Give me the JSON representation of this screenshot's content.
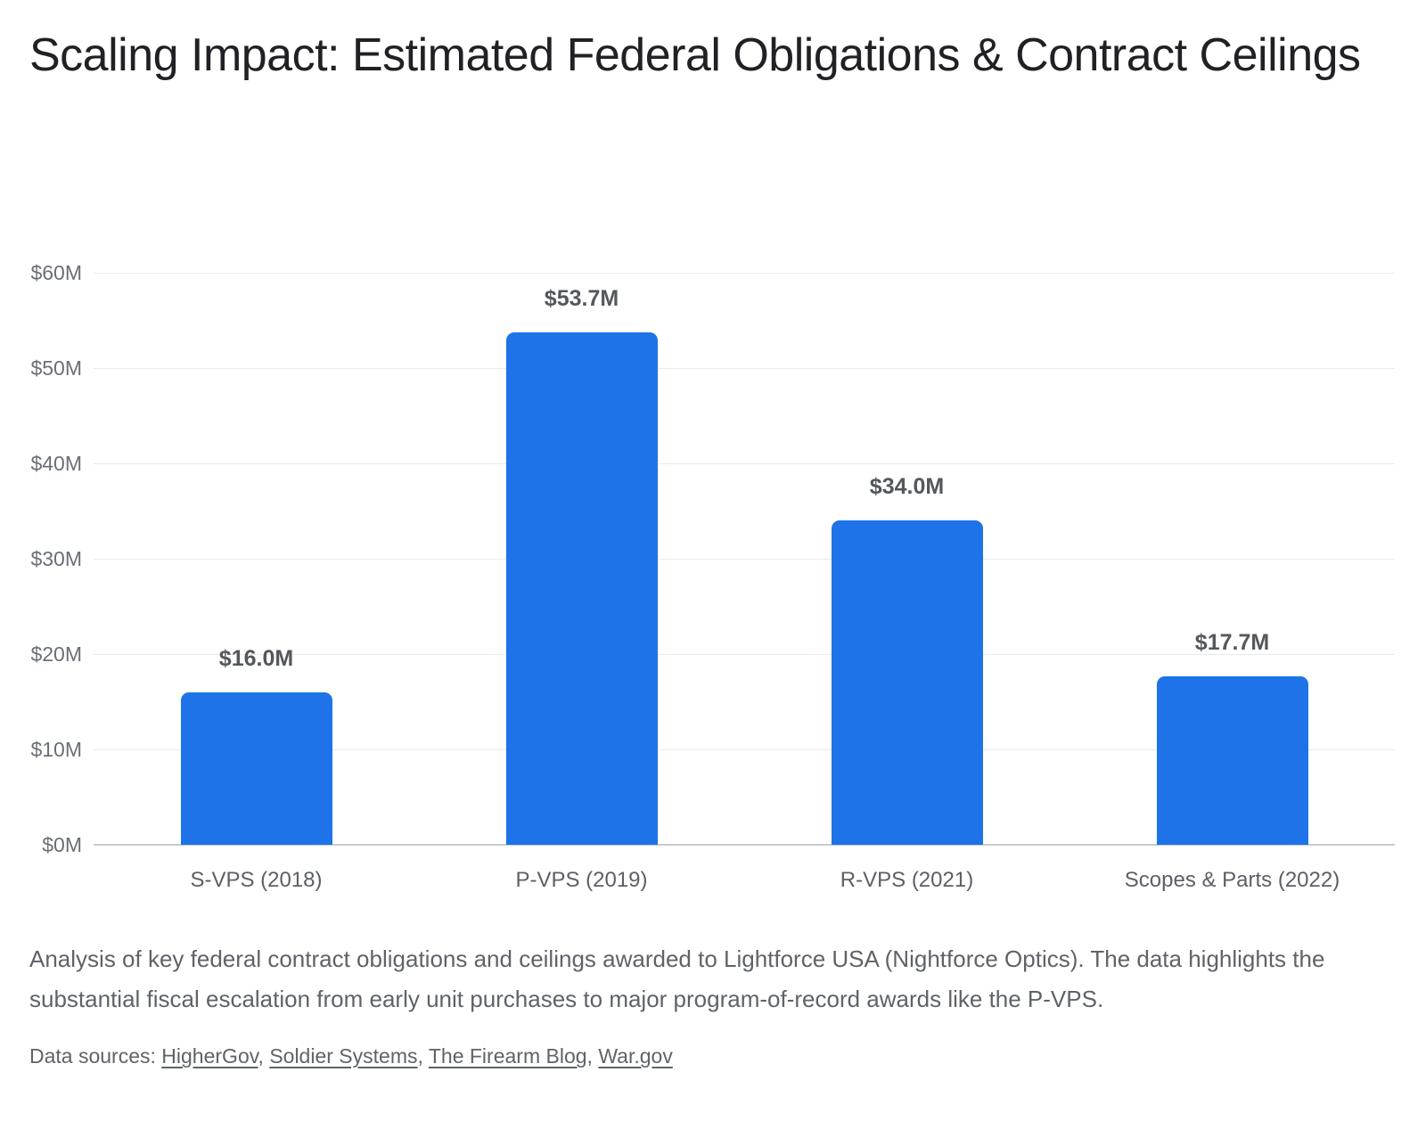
{
  "header": {
    "title": "Scaling Impact: Estimated Federal Obligations & Contract Ceilings"
  },
  "chart_data": {
    "type": "bar",
    "title": "Scaling Impact: Estimated Federal Obligations & Contract Ceilings",
    "categories": [
      "S-VPS (2018)",
      "P-VPS (2019)",
      "R-VPS (2021)",
      "Scopes & Parts (2022)"
    ],
    "values": [
      16.0,
      53.7,
      34.0,
      17.7
    ],
    "bar_labels": [
      "$16.0M",
      "$53.7M",
      "$34.0M",
      "$17.7M"
    ],
    "xlabel": "",
    "ylabel": "",
    "ylim": [
      0,
      60
    ],
    "grid": true,
    "legend": false,
    "bar_color": "#1e73e8",
    "y_ticks": [
      {
        "value": 0,
        "label": "$0M"
      },
      {
        "value": 10,
        "label": "$10M"
      },
      {
        "value": 20,
        "label": "$20M"
      },
      {
        "value": 30,
        "label": "$30M"
      },
      {
        "value": 40,
        "label": "$40M"
      },
      {
        "value": 50,
        "label": "$50M"
      },
      {
        "value": 60,
        "label": "$60M"
      }
    ]
  },
  "footer": {
    "description": "Analysis of key federal contract obligations and ceilings awarded to Lightforce USA (Nightforce Optics). The data highlights the substantial fiscal escalation from early unit purchases to major program-of-record awards like the P-VPS.",
    "sources_label": "Data sources:",
    "sources": [
      "HigherGov",
      "Soldier Systems",
      "The Firearm Blog",
      "War.gov"
    ],
    "separator": ", "
  },
  "colors": {
    "background": "#ffffff",
    "accent_bar": "#1e73e8",
    "title_text": "#202124",
    "axis_text": "#6a6f75",
    "category_text": "#5c6066",
    "value_text": "#54575c",
    "body_text": "#5f6368",
    "gridline": "#e9eaec",
    "axis_line": "#c9cbce"
  }
}
